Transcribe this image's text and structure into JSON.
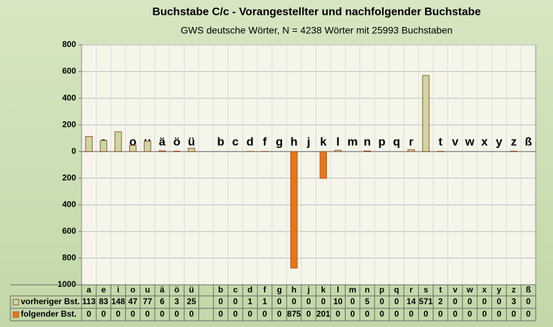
{
  "chart_data": {
    "type": "bar",
    "title": "Buchstabe C/c - Vorangestellter und nachfolgender Buchstabe",
    "subtitle": "GWS deutsche Wörter, N = 4238 Wörter mit 25993 Buchstaben",
    "categories": [
      "a",
      "e",
      "i",
      "o",
      "u",
      "ä",
      "ö",
      "ü",
      null,
      "b",
      "c",
      "d",
      "f",
      "g",
      "h",
      "j",
      "k",
      "l",
      "m",
      "n",
      "p",
      "q",
      "r",
      "s",
      "t",
      "v",
      "w",
      "x",
      "y",
      "z",
      "ß"
    ],
    "series": [
      {
        "name": "vorheriger Bst.",
        "color": "#c9d9a3",
        "border": "#a0522d",
        "values": [
          113,
          83,
          148,
          47,
          77,
          6,
          3,
          25,
          null,
          0,
          0,
          1,
          1,
          0,
          0,
          0,
          0,
          10,
          0,
          5,
          0,
          0,
          14,
          571,
          2,
          0,
          0,
          0,
          0,
          3,
          0
        ]
      },
      {
        "name": "folgender Bst.",
        "color": "#e8741c",
        "border": "#b85a10",
        "values": [
          0,
          0,
          0,
          0,
          0,
          0,
          0,
          0,
          null,
          0,
          0,
          0,
          0,
          0,
          -875,
          0,
          -201,
          0,
          0,
          0,
          0,
          0,
          0,
          0,
          0,
          0,
          0,
          0,
          0,
          0,
          0
        ],
        "value_labels": [
          "0",
          "0",
          "0",
          "0",
          "0",
          "0",
          "0",
          "0",
          null,
          "0",
          "0",
          "0",
          "0",
          "0",
          "875",
          "0",
          "201",
          "0",
          "0",
          "0",
          "0",
          "0",
          "0",
          "0",
          "0",
          "0",
          "0",
          "0",
          "0",
          "0",
          "0"
        ]
      }
    ],
    "ylim": [
      -1000,
      800
    ],
    "yticks": [
      800,
      600,
      400,
      200,
      0,
      {
        "value": -200,
        "label": "200"
      },
      {
        "value": -400,
        "label": "400"
      },
      {
        "value": -600,
        "label": "600"
      },
      {
        "value": -800,
        "label": "800"
      },
      {
        "value": -1000,
        "label": "1000"
      }
    ],
    "grid": true
  }
}
